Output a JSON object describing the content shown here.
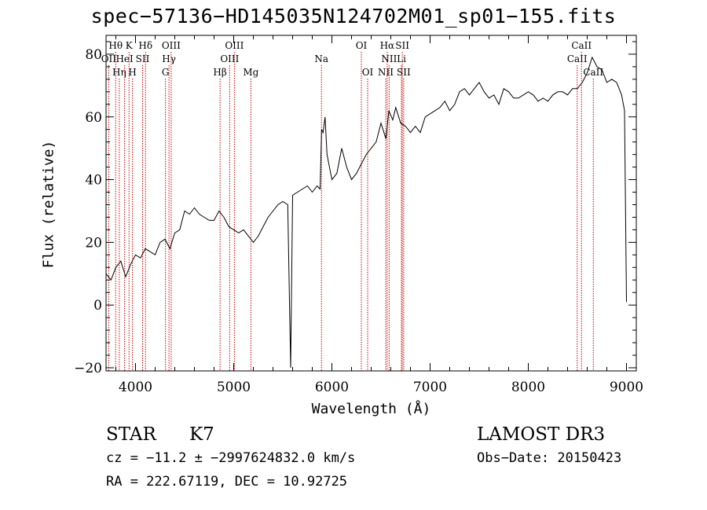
{
  "header": {
    "title": "spec−57136−HD145035N124702M01_sp01−155.fits"
  },
  "footer": {
    "object_class": "STAR",
    "subclass": "K7",
    "survey": "LAMOST DR3",
    "cz": "cz = −11.2 ± −2997624832.0 km/s",
    "obs_date": "Obs−Date: 20150423",
    "radec": "RA = 222.67119, DEC =  10.92725"
  },
  "chart_data": {
    "type": "line",
    "title": "spec−57136−HD145035N124702M01_sp01−155.fits",
    "xlabel": "Wavelength (Å)",
    "ylabel": "Flux (relative)",
    "xlim": [
      3700,
      9100
    ],
    "ylim": [
      -21,
      86
    ],
    "xticks": [
      4000,
      5000,
      6000,
      7000,
      8000,
      9000
    ],
    "xtick_labels": [
      "4000",
      "5000",
      "6000",
      "7000",
      "8000",
      "9000"
    ],
    "yticks": [
      -20,
      0,
      20,
      40,
      60,
      80
    ],
    "ytick_labels": [
      "−20",
      "0",
      "20",
      "40",
      "60",
      "80"
    ],
    "grid": false,
    "series": [
      {
        "x": [
          3700,
          3750,
          3800,
          3850,
          3900,
          3950,
          4000,
          4050,
          4100,
          4150,
          4200,
          4250,
          4300,
          4350,
          4400,
          4450,
          4500,
          4550,
          4600,
          4650,
          4700,
          4750,
          4800,
          4850,
          4900,
          4950,
          5000,
          5050,
          5100,
          5150,
          5200,
          5250,
          5300,
          5350,
          5400,
          5450,
          5500,
          5550,
          5580,
          5600,
          5650,
          5700,
          5750,
          5800,
          5850,
          5880,
          5895,
          5910,
          5930,
          5950,
          6000,
          6050,
          6100,
          6150,
          6200,
          6250,
          6300,
          6350,
          6400,
          6450,
          6500,
          6550,
          6580,
          6620,
          6650,
          6700,
          6750,
          6800,
          6850,
          6900,
          6950,
          7000,
          7050,
          7100,
          7150,
          7200,
          7250,
          7300,
          7350,
          7400,
          7450,
          7500,
          7550,
          7600,
          7650,
          7700,
          7750,
          7800,
          7850,
          7900,
          7950,
          8000,
          8050,
          8100,
          8150,
          8200,
          8250,
          8300,
          8350,
          8400,
          8450,
          8500,
          8550,
          8600,
          8650,
          8700,
          8750,
          8800,
          8850,
          8900,
          8950,
          8980,
          9000
        ],
        "y": [
          10,
          8,
          12,
          14,
          9,
          13,
          16,
          15,
          18,
          17,
          16,
          20,
          21,
          18,
          23,
          24,
          30,
          29,
          31,
          29,
          28,
          27,
          27,
          30,
          28,
          25,
          24,
          23,
          24,
          22,
          20,
          22,
          25,
          28,
          30,
          32,
          33,
          32,
          -20,
          35,
          36,
          37,
          38,
          36,
          38,
          37,
          56,
          55,
          60,
          48,
          40,
          42,
          50,
          44,
          40,
          42,
          45,
          48,
          50,
          52,
          58,
          53,
          62,
          59,
          63,
          58,
          57,
          55,
          57,
          55,
          60,
          61,
          62,
          63,
          65,
          62,
          64,
          68,
          69,
          67,
          69,
          71,
          68,
          66,
          67,
          64,
          69,
          68,
          66,
          66,
          67,
          68,
          67,
          65,
          66,
          65,
          67,
          68,
          68,
          67,
          69,
          69,
          71,
          74,
          79,
          76,
          75,
          71,
          72,
          71,
          67,
          62,
          1
        ]
      }
    ],
    "line_markers": [
      {
        "label": "OII",
        "wavelength": 3727,
        "row": 1
      },
      {
        "label": "Hθ",
        "wavelength": 3798,
        "row": 0
      },
      {
        "label": "Hη",
        "wavelength": 3835,
        "row": 2
      },
      {
        "label": "HeI",
        "wavelength": 3889,
        "row": 1
      },
      {
        "label": "K",
        "wavelength": 3934,
        "row": 0
      },
      {
        "label": "H",
        "wavelength": 3969,
        "row": 2
      },
      {
        "label": "SII",
        "wavelength": 4072,
        "row": 1
      },
      {
        "label": "Hδ",
        "wavelength": 4102,
        "row": 0
      },
      {
        "label": "G",
        "wavelength": 4305,
        "row": 2
      },
      {
        "label": "Hγ",
        "wavelength": 4341,
        "row": 1
      },
      {
        "label": "OIII",
        "wavelength": 4363,
        "row": 0
      },
      {
        "label": "Hβ",
        "wavelength": 4861,
        "row": 2
      },
      {
        "label": "OIII",
        "wavelength": 4959,
        "row": 1
      },
      {
        "label": "OIII",
        "wavelength": 5007,
        "row": 0
      },
      {
        "label": "Mg",
        "wavelength": 5175,
        "row": 2
      },
      {
        "label": "Na",
        "wavelength": 5894,
        "row": 1
      },
      {
        "label": "OI",
        "wavelength": 6300,
        "row": 0
      },
      {
        "label": "OI",
        "wavelength": 6364,
        "row": 2
      },
      {
        "label": "NII",
        "wavelength": 6548,
        "row": 2
      },
      {
        "label": "Hα",
        "wavelength": 6563,
        "row": 0
      },
      {
        "label": "NII",
        "wavelength": 6583,
        "row": 1
      },
      {
        "label": "Li",
        "wavelength": 6708,
        "row": 1
      },
      {
        "label": "SII",
        "wavelength": 6717,
        "row": 0
      },
      {
        "label": "SII",
        "wavelength": 6731,
        "row": 2
      },
      {
        "label": "CaII",
        "wavelength": 8498,
        "row": 1
      },
      {
        "label": "CaII",
        "wavelength": 8542,
        "row": 0
      },
      {
        "label": "CaII",
        "wavelength": 8662,
        "row": 2
      }
    ]
  },
  "colors": {
    "spectrum": "#000000",
    "marker_line": "#cc0000",
    "axes": "#000000"
  }
}
